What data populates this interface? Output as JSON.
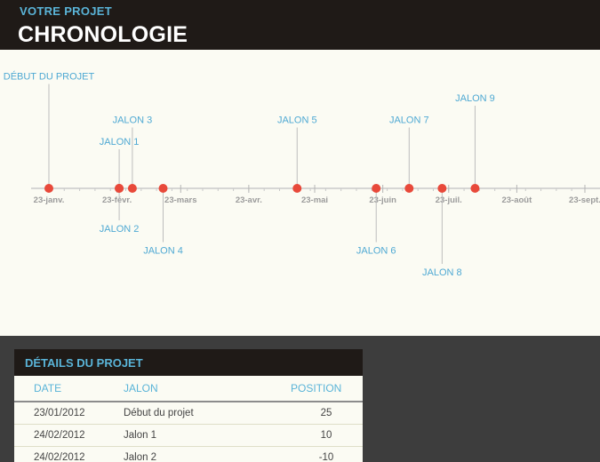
{
  "header": {
    "subtitle": "VOTRE PROJET",
    "title": "CHRONOLOGIE"
  },
  "colors": {
    "header_bg": "#1f1a17",
    "accent": "#5ab4d8",
    "marker": "#e8493a",
    "chart_bg": "#fbfbf3",
    "page_bg": "#3d3d3d"
  },
  "chart_data": {
    "type": "scatter",
    "x_axis": {
      "type": "date",
      "min": "2012-01-23",
      "max": "2012-09-23",
      "ticks": [
        "2012-01-23",
        "2012-02-23",
        "2012-03-23",
        "2012-04-23",
        "2012-05-23",
        "2012-06-23",
        "2012-07-23",
        "2012-08-23",
        "2012-09-23"
      ],
      "tick_labels": [
        "23-janv.",
        "23-févr.",
        "23-mars",
        "23-avr.",
        "23-mai",
        "23-juin",
        "23-juil.",
        "23-août",
        "23-sept."
      ]
    },
    "y_range": [
      -30,
      30
    ],
    "points": [
      {
        "label": "DÉBUT DU PROJET",
        "date": "2012-01-23",
        "position": 25
      },
      {
        "label": "JALON 1",
        "date": "2012-02-24",
        "position": 10
      },
      {
        "label": "JALON 2",
        "date": "2012-02-24",
        "position": -10
      },
      {
        "label": "JALON 3",
        "date": "2012-03-01",
        "position": 15
      },
      {
        "label": "JALON 4",
        "date": "2012-03-15",
        "position": -15
      },
      {
        "label": "JALON 5",
        "date": "2012-05-15",
        "position": 15
      },
      {
        "label": "JALON 6",
        "date": "2012-06-20",
        "position": -15
      },
      {
        "label": "JALON 7",
        "date": "2012-07-05",
        "position": 15
      },
      {
        "label": "JALON 8",
        "date": "2012-07-20",
        "position": -20
      },
      {
        "label": "JALON 9",
        "date": "2012-08-04",
        "position": 20
      }
    ]
  },
  "details": {
    "title": "DÉTAILS DU PROJET",
    "columns": {
      "date": "DATE",
      "milestone": "JALON",
      "position": "POSITION"
    },
    "rows": [
      {
        "date": "23/01/2012",
        "milestone": "Début du projet",
        "position": "25"
      },
      {
        "date": "24/02/2012",
        "milestone": "Jalon 1",
        "position": "10"
      },
      {
        "date": "24/02/2012",
        "milestone": "Jalon 2",
        "position": "-10"
      }
    ]
  }
}
